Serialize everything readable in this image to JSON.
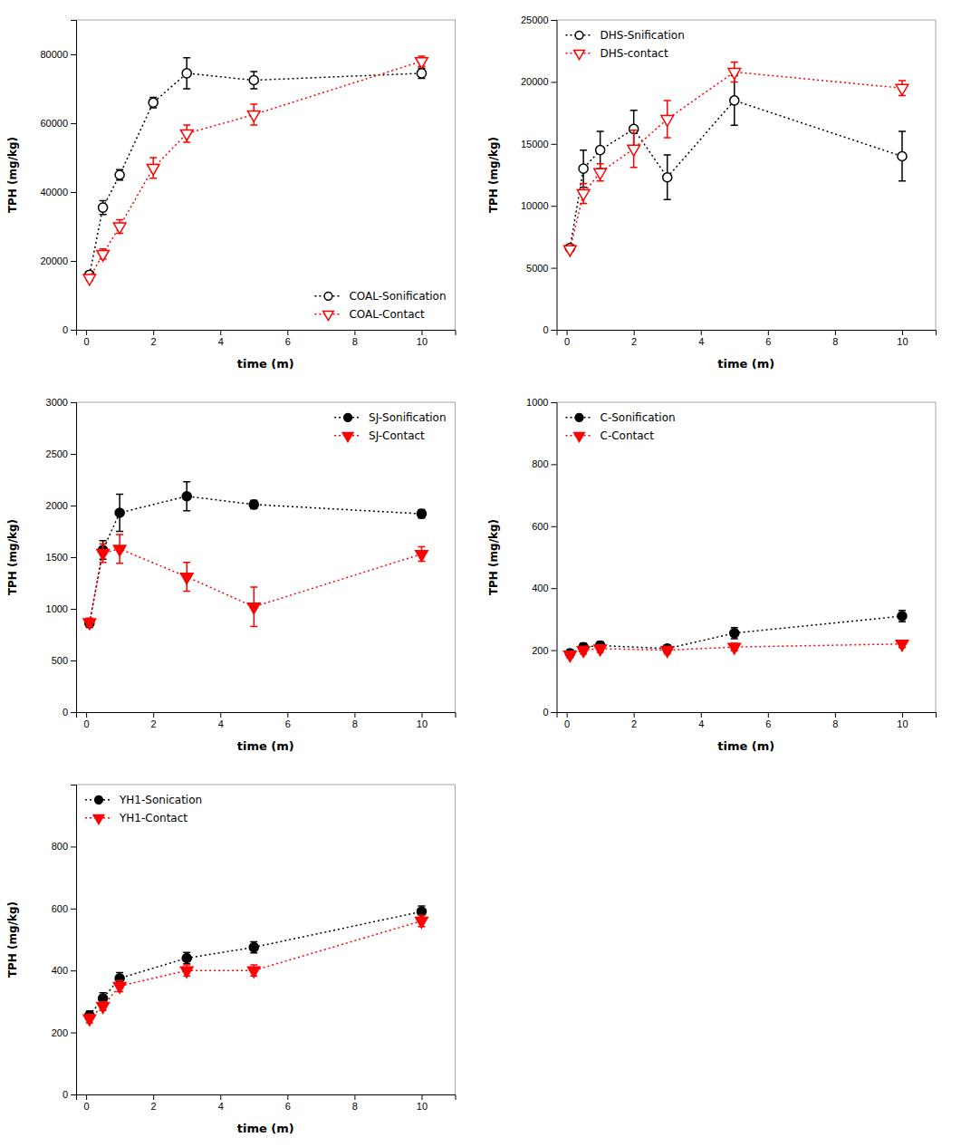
{
  "chart_data": [
    {
      "type": "line",
      "xlabel": "time (m)",
      "ylabel": "TPH (mg/kg)",
      "xlim": [
        -0.3,
        11
      ],
      "ylim": [
        0,
        90000
      ],
      "xticks": [
        0,
        2,
        4,
        6,
        8,
        10
      ],
      "yticks": [
        0,
        20000,
        40000,
        60000,
        80000
      ],
      "grid": false,
      "legend": "lower right",
      "x": [
        0.1,
        0.5,
        1,
        2,
        3,
        5,
        10
      ],
      "series": [
        {
          "name": "COAL-Sonification",
          "color": "black",
          "marker": "open-circle",
          "line_style": "dotted",
          "values": [
            16000,
            35500,
            45000,
            66000,
            74500,
            72500,
            74500
          ],
          "errors": [
            800,
            2000,
            1500,
            1500,
            4500,
            2500,
            1500
          ]
        },
        {
          "name": "COAL-Contact",
          "color": "red",
          "marker": "open-triangle-down",
          "line_style": "dotted",
          "values": [
            15000,
            22000,
            30000,
            47000,
            57000,
            62500,
            78000
          ],
          "errors": [
            800,
            1500,
            2000,
            3000,
            2500,
            3000,
            1500
          ]
        }
      ]
    },
    {
      "type": "line",
      "xlabel": "time (m)",
      "ylabel": "TPH (mg/kg)",
      "xlim": [
        -0.3,
        11
      ],
      "ylim": [
        0,
        25000
      ],
      "xticks": [
        0,
        2,
        4,
        6,
        8,
        10
      ],
      "yticks": [
        0,
        5000,
        10000,
        15000,
        20000,
        25000
      ],
      "grid": false,
      "legend": "upper left",
      "x": [
        0.1,
        0.5,
        1,
        2,
        3,
        5,
        10
      ],
      "series": [
        {
          "name": "DHS-Snification",
          "color": "black",
          "marker": "open-circle",
          "line_style": "dotted",
          "values": [
            6600,
            13000,
            14500,
            16200,
            12300,
            18500,
            14000
          ],
          "errors": [
            200,
            1500,
            1500,
            1500,
            1800,
            2000,
            2000
          ]
        },
        {
          "name": "DHS-contact",
          "color": "red",
          "marker": "open-triangle-down",
          "line_style": "dotted",
          "values": [
            6500,
            11000,
            12700,
            14600,
            17000,
            20800,
            19500
          ],
          "errors": [
            200,
            800,
            700,
            1500,
            1500,
            800,
            600
          ]
        }
      ]
    },
    {
      "type": "line",
      "xlabel": "time (m)",
      "ylabel": "TPH (mg/kg)",
      "xlim": [
        -0.3,
        11
      ],
      "ylim": [
        0,
        3000
      ],
      "xticks": [
        0,
        2,
        4,
        6,
        8,
        10
      ],
      "yticks": [
        0,
        500,
        1000,
        1500,
        2000,
        2500,
        3000
      ],
      "grid": false,
      "legend": "upper right",
      "x": [
        0.1,
        0.5,
        1,
        3,
        5,
        10
      ],
      "series": [
        {
          "name": "SJ-Sonification",
          "color": "black",
          "marker": "circle",
          "line_style": "dotted",
          "values": [
            860,
            1570,
            1930,
            2090,
            2010,
            1920
          ],
          "errors": [
            40,
            90,
            180,
            140,
            40,
            40
          ]
        },
        {
          "name": "SJ-Contact",
          "color": "red",
          "marker": "triangle-down",
          "line_style": "dotted",
          "values": [
            870,
            1540,
            1580,
            1310,
            1020,
            1530
          ],
          "errors": [
            40,
            90,
            140,
            140,
            190,
            70
          ]
        }
      ]
    },
    {
      "type": "line",
      "xlabel": "time (m)",
      "ylabel": "TPH (mg/kg)",
      "xlim": [
        -0.3,
        11
      ],
      "ylim": [
        0,
        1000
      ],
      "xticks": [
        0,
        2,
        4,
        6,
        8,
        10
      ],
      "yticks": [
        0,
        200,
        400,
        600,
        800,
        1000
      ],
      "grid": false,
      "legend": "upper left",
      "x": [
        0.1,
        0.5,
        1,
        3,
        5,
        10
      ],
      "series": [
        {
          "name": "C-Sonification",
          "color": "black",
          "marker": "circle",
          "line_style": "dotted",
          "values": [
            190,
            210,
            215,
            205,
            255,
            310
          ],
          "errors": [
            10,
            12,
            12,
            12,
            18,
            18
          ]
        },
        {
          "name": "C-Contact",
          "color": "red",
          "marker": "triangle-down",
          "line_style": "dotted",
          "values": [
            185,
            200,
            205,
            200,
            210,
            220
          ],
          "errors": [
            10,
            12,
            12,
            12,
            12,
            12
          ]
        }
      ]
    },
    {
      "type": "line",
      "xlabel": "time (m)",
      "ylabel": "TPH (mg/kg)",
      "xlim": [
        -0.3,
        11
      ],
      "ylim": [
        0,
        1000
      ],
      "xticks": [
        0,
        2,
        4,
        6,
        8,
        10
      ],
      "yticks": [
        0,
        200,
        400,
        600,
        800
      ],
      "grid": false,
      "legend": "upper left",
      "x": [
        0.1,
        0.5,
        1,
        3,
        5,
        10
      ],
      "series": [
        {
          "name": "YH1-Sonication",
          "color": "black",
          "marker": "circle",
          "line_style": "dotted",
          "values": [
            255,
            310,
            375,
            440,
            475,
            590
          ],
          "errors": [
            14,
            18,
            18,
            18,
            18,
            18
          ]
        },
        {
          "name": "YH1-Contact",
          "color": "red",
          "marker": "triangle-down",
          "line_style": "dotted",
          "values": [
            245,
            285,
            350,
            400,
            400,
            560
          ],
          "errors": [
            14,
            14,
            18,
            18,
            18,
            18
          ]
        }
      ]
    }
  ]
}
